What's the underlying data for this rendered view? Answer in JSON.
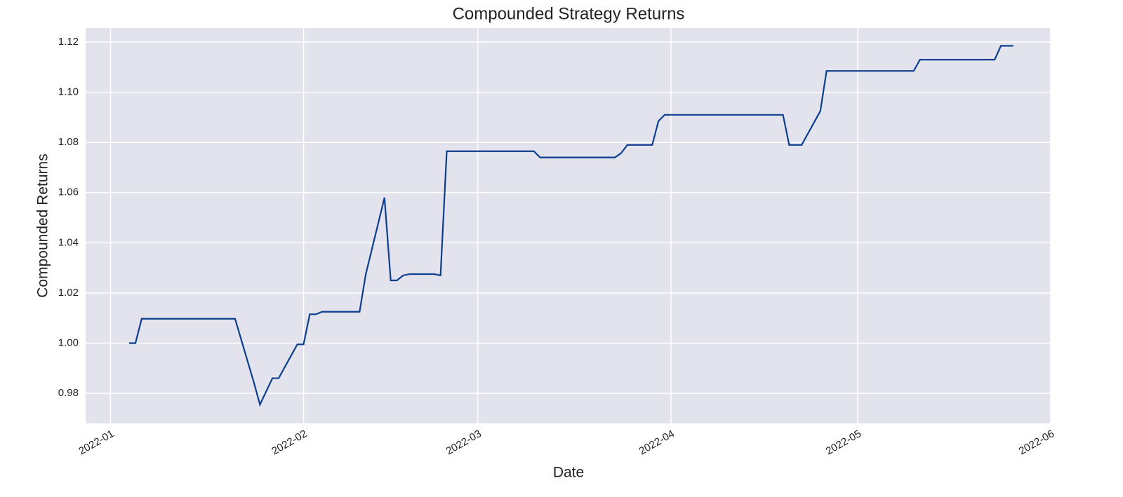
{
  "chart_data": {
    "type": "line",
    "title": "Compounded Strategy Returns",
    "x_label": "Date",
    "y_label": "Compounded Returns",
    "x": [
      "2022-01-04",
      "2022-01-05",
      "2022-01-06",
      "2022-01-21",
      "2022-01-24",
      "2022-01-25",
      "2022-01-27",
      "2022-01-28",
      "2022-01-31",
      "2022-02-01",
      "2022-02-02",
      "2022-02-03",
      "2022-02-04",
      "2022-02-10",
      "2022-02-11",
      "2022-02-14",
      "2022-02-15",
      "2022-02-16",
      "2022-02-17",
      "2022-02-18",
      "2022-02-22",
      "2022-02-23",
      "2022-02-24",
      "2022-03-10",
      "2022-03-11",
      "2022-03-23",
      "2022-03-24",
      "2022-03-25",
      "2022-03-29",
      "2022-03-30",
      "2022-03-31",
      "2022-04-19",
      "2022-04-20",
      "2022-04-22",
      "2022-04-25",
      "2022-04-26",
      "2022-05-10",
      "2022-05-11",
      "2022-05-23",
      "2022-05-24",
      "2022-05-26"
    ],
    "series": [
      {
        "name": "Compounded Returns",
        "color": "#0d3e8f",
        "values": [
          1.0,
          1.0,
          1.0097,
          1.0097,
          0.9845,
          0.9755,
          0.986,
          0.986,
          0.9995,
          0.9995,
          1.0115,
          1.0115,
          1.0125,
          1.0125,
          1.0275,
          1.058,
          1.025,
          1.025,
          1.027,
          1.0275,
          1.0275,
          1.027,
          1.0765,
          1.0765,
          1.074,
          1.074,
          1.0757,
          1.079,
          1.079,
          1.0885,
          1.091,
          1.091,
          1.079,
          1.079,
          1.0925,
          1.1085,
          1.1085,
          1.113,
          1.113,
          1.1185,
          1.1185
        ]
      }
    ],
    "xlim": [
      "2021-12-28",
      "2022-06-01"
    ],
    "xticks": [
      {
        "value": "2022-01-01",
        "label": "2022-01"
      },
      {
        "value": "2022-02-01",
        "label": "2022-02"
      },
      {
        "value": "2022-03-01",
        "label": "2022-03"
      },
      {
        "value": "2022-04-01",
        "label": "2022-04"
      },
      {
        "value": "2022-05-01",
        "label": "2022-05"
      },
      {
        "value": "2022-06-01",
        "label": "2022-06"
      }
    ],
    "ylim": [
      0.968,
      1.1256
    ],
    "yticks": [
      {
        "value": 0.98,
        "label": "0.98"
      },
      {
        "value": 1.0,
        "label": "1.00"
      },
      {
        "value": 1.02,
        "label": "1.02"
      },
      {
        "value": 1.04,
        "label": "1.04"
      },
      {
        "value": 1.06,
        "label": "1.06"
      },
      {
        "value": 1.08,
        "label": "1.08"
      },
      {
        "value": 1.1,
        "label": "1.10"
      },
      {
        "value": 1.12,
        "label": "1.12"
      }
    ],
    "grid": true,
    "background": "#e3e3ee"
  }
}
